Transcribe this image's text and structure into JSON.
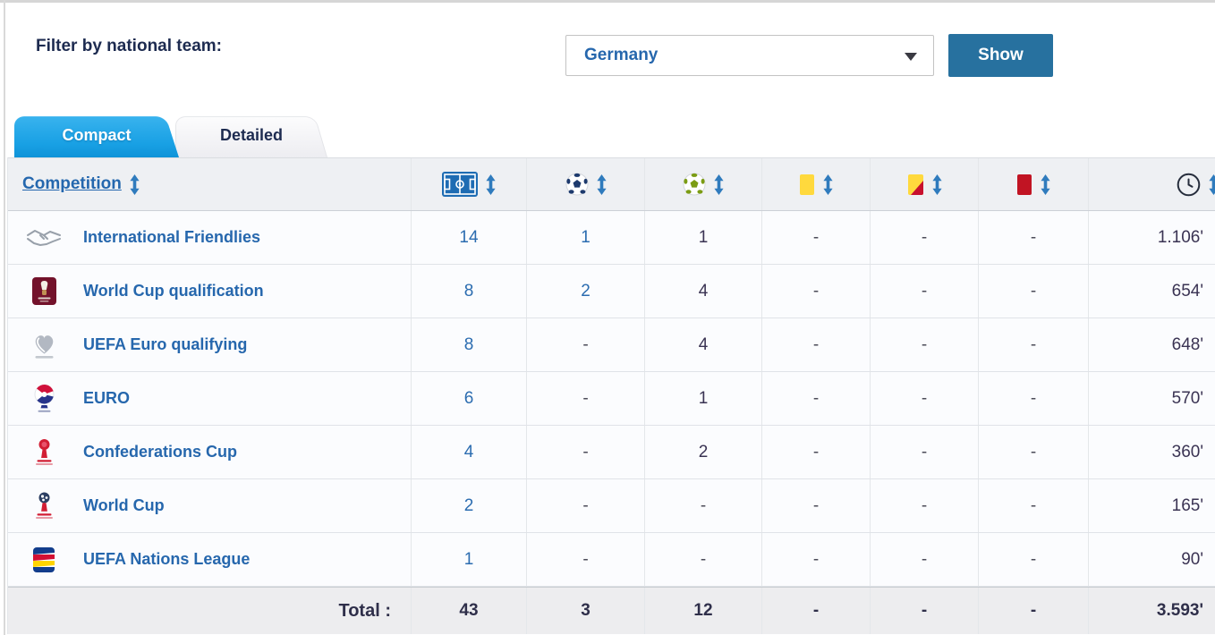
{
  "filter_bar": {
    "label": "Filter by national team:",
    "dropdown_value": "Germany",
    "show_button_label": "Show"
  },
  "tabs": {
    "compact_label": "Compact",
    "detailed_label": "Detailed"
  },
  "table": {
    "header": {
      "competition_label": "Competition",
      "stat_columns": [
        {
          "key": "matches",
          "icon": "pitch-icon"
        },
        {
          "key": "goals",
          "icon": "ball-navy-icon"
        },
        {
          "key": "assists",
          "icon": "ball-green-icon"
        },
        {
          "key": "yellow_cards",
          "icon": "yellow-card-icon"
        },
        {
          "key": "second_yellows",
          "icon": "yellow-red-card-icon"
        },
        {
          "key": "red_cards",
          "icon": "red-card-icon"
        },
        {
          "key": "minutes",
          "icon": "clock-icon"
        }
      ]
    },
    "rows": [
      {
        "icon": "friendlies",
        "competition": "International Friendlies",
        "matches": "14",
        "goals": "1",
        "assists": "1",
        "yellow_cards": "-",
        "second_yellows": "-",
        "red_cards": "-",
        "minutes": "1.106'"
      },
      {
        "icon": "world-cup-qualification",
        "competition": "World Cup qualification",
        "matches": "8",
        "goals": "2",
        "assists": "4",
        "yellow_cards": "-",
        "second_yellows": "-",
        "red_cards": "-",
        "minutes": "654'"
      },
      {
        "icon": "uefa-euro-qualifying",
        "competition": "UEFA Euro qualifying",
        "matches": "8",
        "goals": "-",
        "assists": "4",
        "yellow_cards": "-",
        "second_yellows": "-",
        "red_cards": "-",
        "minutes": "648'"
      },
      {
        "icon": "euro",
        "competition": "EURO",
        "matches": "6",
        "goals": "-",
        "assists": "1",
        "yellow_cards": "-",
        "second_yellows": "-",
        "red_cards": "-",
        "minutes": "570'"
      },
      {
        "icon": "confederations-cup",
        "competition": "Confederations Cup",
        "matches": "4",
        "goals": "-",
        "assists": "2",
        "yellow_cards": "-",
        "second_yellows": "-",
        "red_cards": "-",
        "minutes": "360'"
      },
      {
        "icon": "world-cup",
        "competition": "World Cup",
        "matches": "2",
        "goals": "-",
        "assists": "-",
        "yellow_cards": "-",
        "second_yellows": "-",
        "red_cards": "-",
        "minutes": "165'"
      },
      {
        "icon": "uefa-nations-league",
        "competition": "UEFA Nations League",
        "matches": "1",
        "goals": "-",
        "assists": "-",
        "yellow_cards": "-",
        "second_yellows": "-",
        "red_cards": "-",
        "minutes": "90'"
      }
    ],
    "total": {
      "label": "Total :",
      "matches": "43",
      "goals": "3",
      "assists": "12",
      "yellow_cards": "-",
      "second_yellows": "-",
      "red_cards": "-",
      "minutes": "3.593'"
    }
  },
  "colors": {
    "tab_active_blue": "#23a8e8",
    "show_button_blue": "#27719f",
    "link_blue": "#2667ad",
    "header_bg": "#eef0f3",
    "total_row_bg": "#ededef",
    "yellow_card": "#ffd93d",
    "red_card": "#c11423",
    "pitch_icon_blue": "#1e6cb3",
    "assists_ball_green": "#7b9c13",
    "goals_ball_navy": "#1d3a6d"
  }
}
